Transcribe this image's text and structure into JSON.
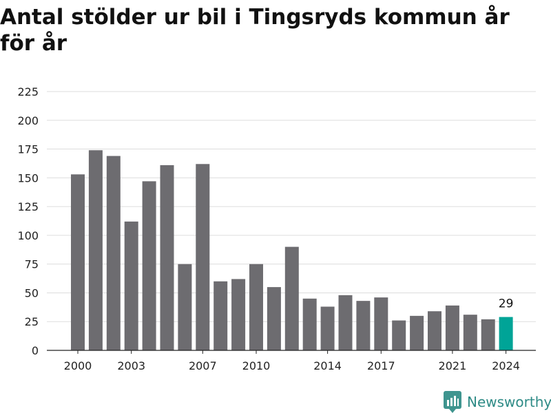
{
  "title": "Antal stölder ur bil i Tingsryds kommun år för år",
  "brand": {
    "name": "Newsworthy",
    "logo_icon": "newsworthy-logo-icon"
  },
  "colors": {
    "bar": "#6d6c70",
    "highlight": "#00a497",
    "grid": "#dddddd",
    "axis": "#222222",
    "brand": "#2e8b86"
  },
  "chart_data": {
    "type": "bar",
    "title": "Antal stölder ur bil i Tingsryds kommun år för år",
    "xlabel": "",
    "ylabel": "",
    "categories": [
      2000,
      2001,
      2002,
      2003,
      2004,
      2005,
      2006,
      2007,
      2008,
      2009,
      2010,
      2011,
      2012,
      2013,
      2014,
      2015,
      2016,
      2017,
      2018,
      2019,
      2020,
      2021,
      2022,
      2023,
      2024
    ],
    "values": [
      153,
      174,
      169,
      112,
      147,
      161,
      75,
      162,
      60,
      62,
      75,
      55,
      90,
      45,
      38,
      48,
      43,
      46,
      26,
      30,
      34,
      39,
      31,
      27,
      29
    ],
    "ylim": [
      0,
      225
    ],
    "yticks": [
      0,
      25,
      50,
      75,
      100,
      125,
      150,
      175,
      200,
      225
    ],
    "xticks": [
      "2000",
      "2003",
      "2007",
      "2010",
      "2014",
      "2017",
      "2021",
      "2024"
    ],
    "highlight": {
      "category": 2024,
      "label": "29"
    },
    "grid": true
  }
}
